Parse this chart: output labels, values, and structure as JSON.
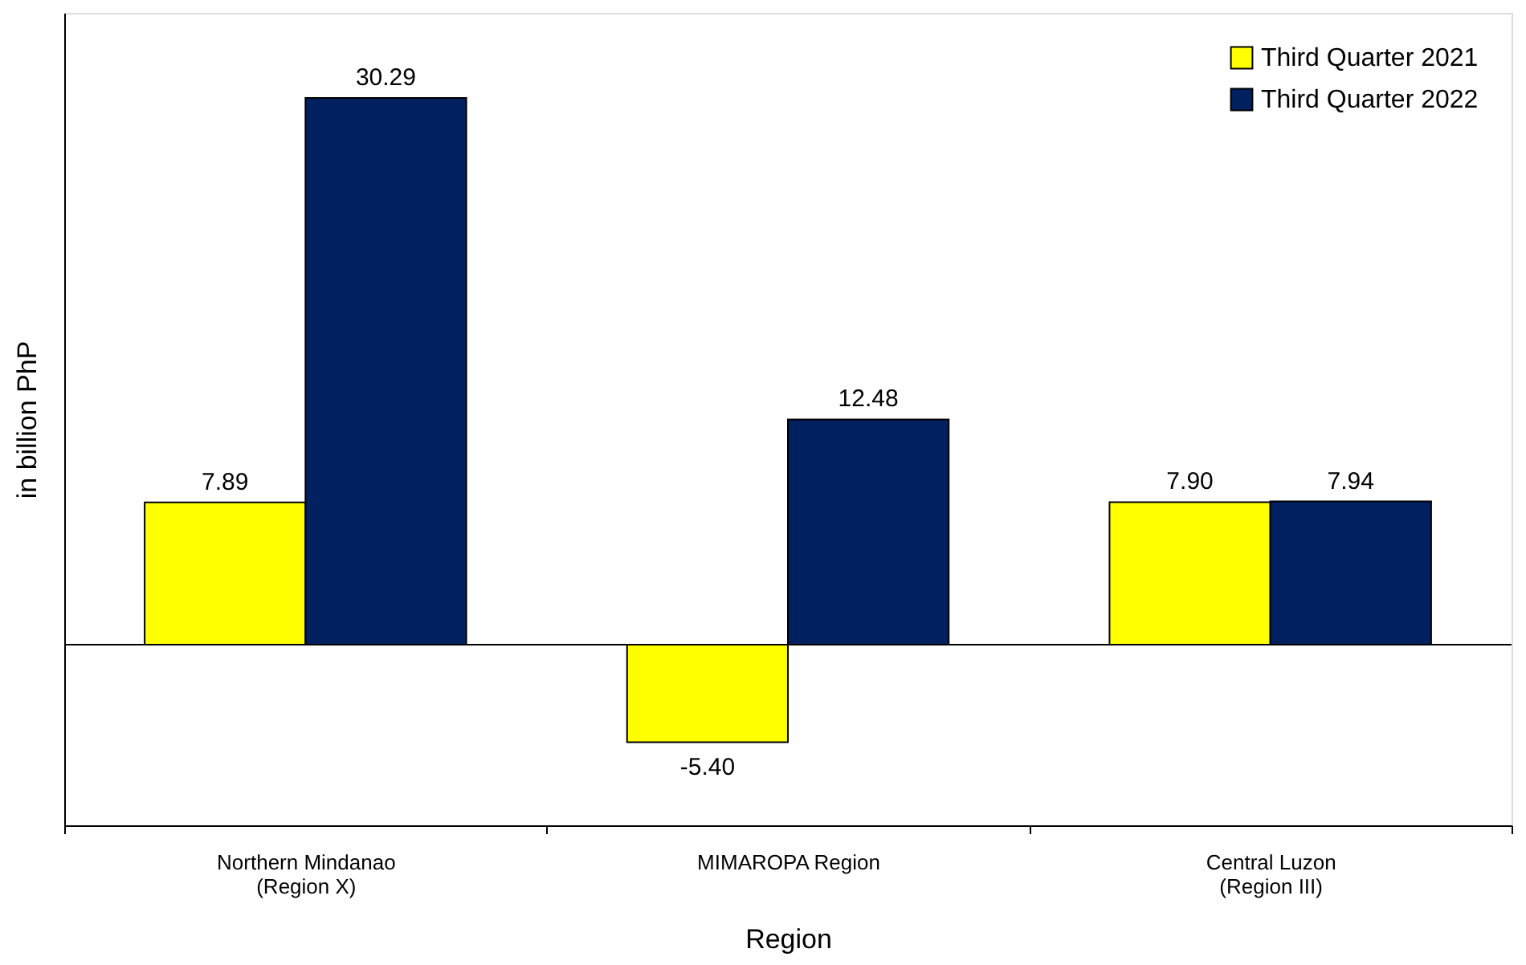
{
  "chart_data": {
    "type": "bar",
    "xlabel": "Region",
    "ylabel": "in billion PhP",
    "categories": [
      "Northern Mindanao\n(Region X)",
      "MIMAROPA Region",
      "Central Luzon\n(Region III)"
    ],
    "series": [
      {
        "name": "Third Quarter 2021",
        "color": "#ffff00",
        "values": [
          7.89,
          -5.4,
          7.9
        ],
        "value_labels": [
          "7.89",
          "-5.40",
          "7.90"
        ]
      },
      {
        "name": "Third Quarter 2022",
        "color": "#002060",
        "values": [
          30.29,
          12.48,
          7.94
        ],
        "value_labels": [
          "30.29",
          "12.48",
          "7.94"
        ]
      }
    ],
    "ylim": [
      -10,
      35
    ],
    "tick_labels": "x",
    "grid": false,
    "legend": "top right"
  }
}
